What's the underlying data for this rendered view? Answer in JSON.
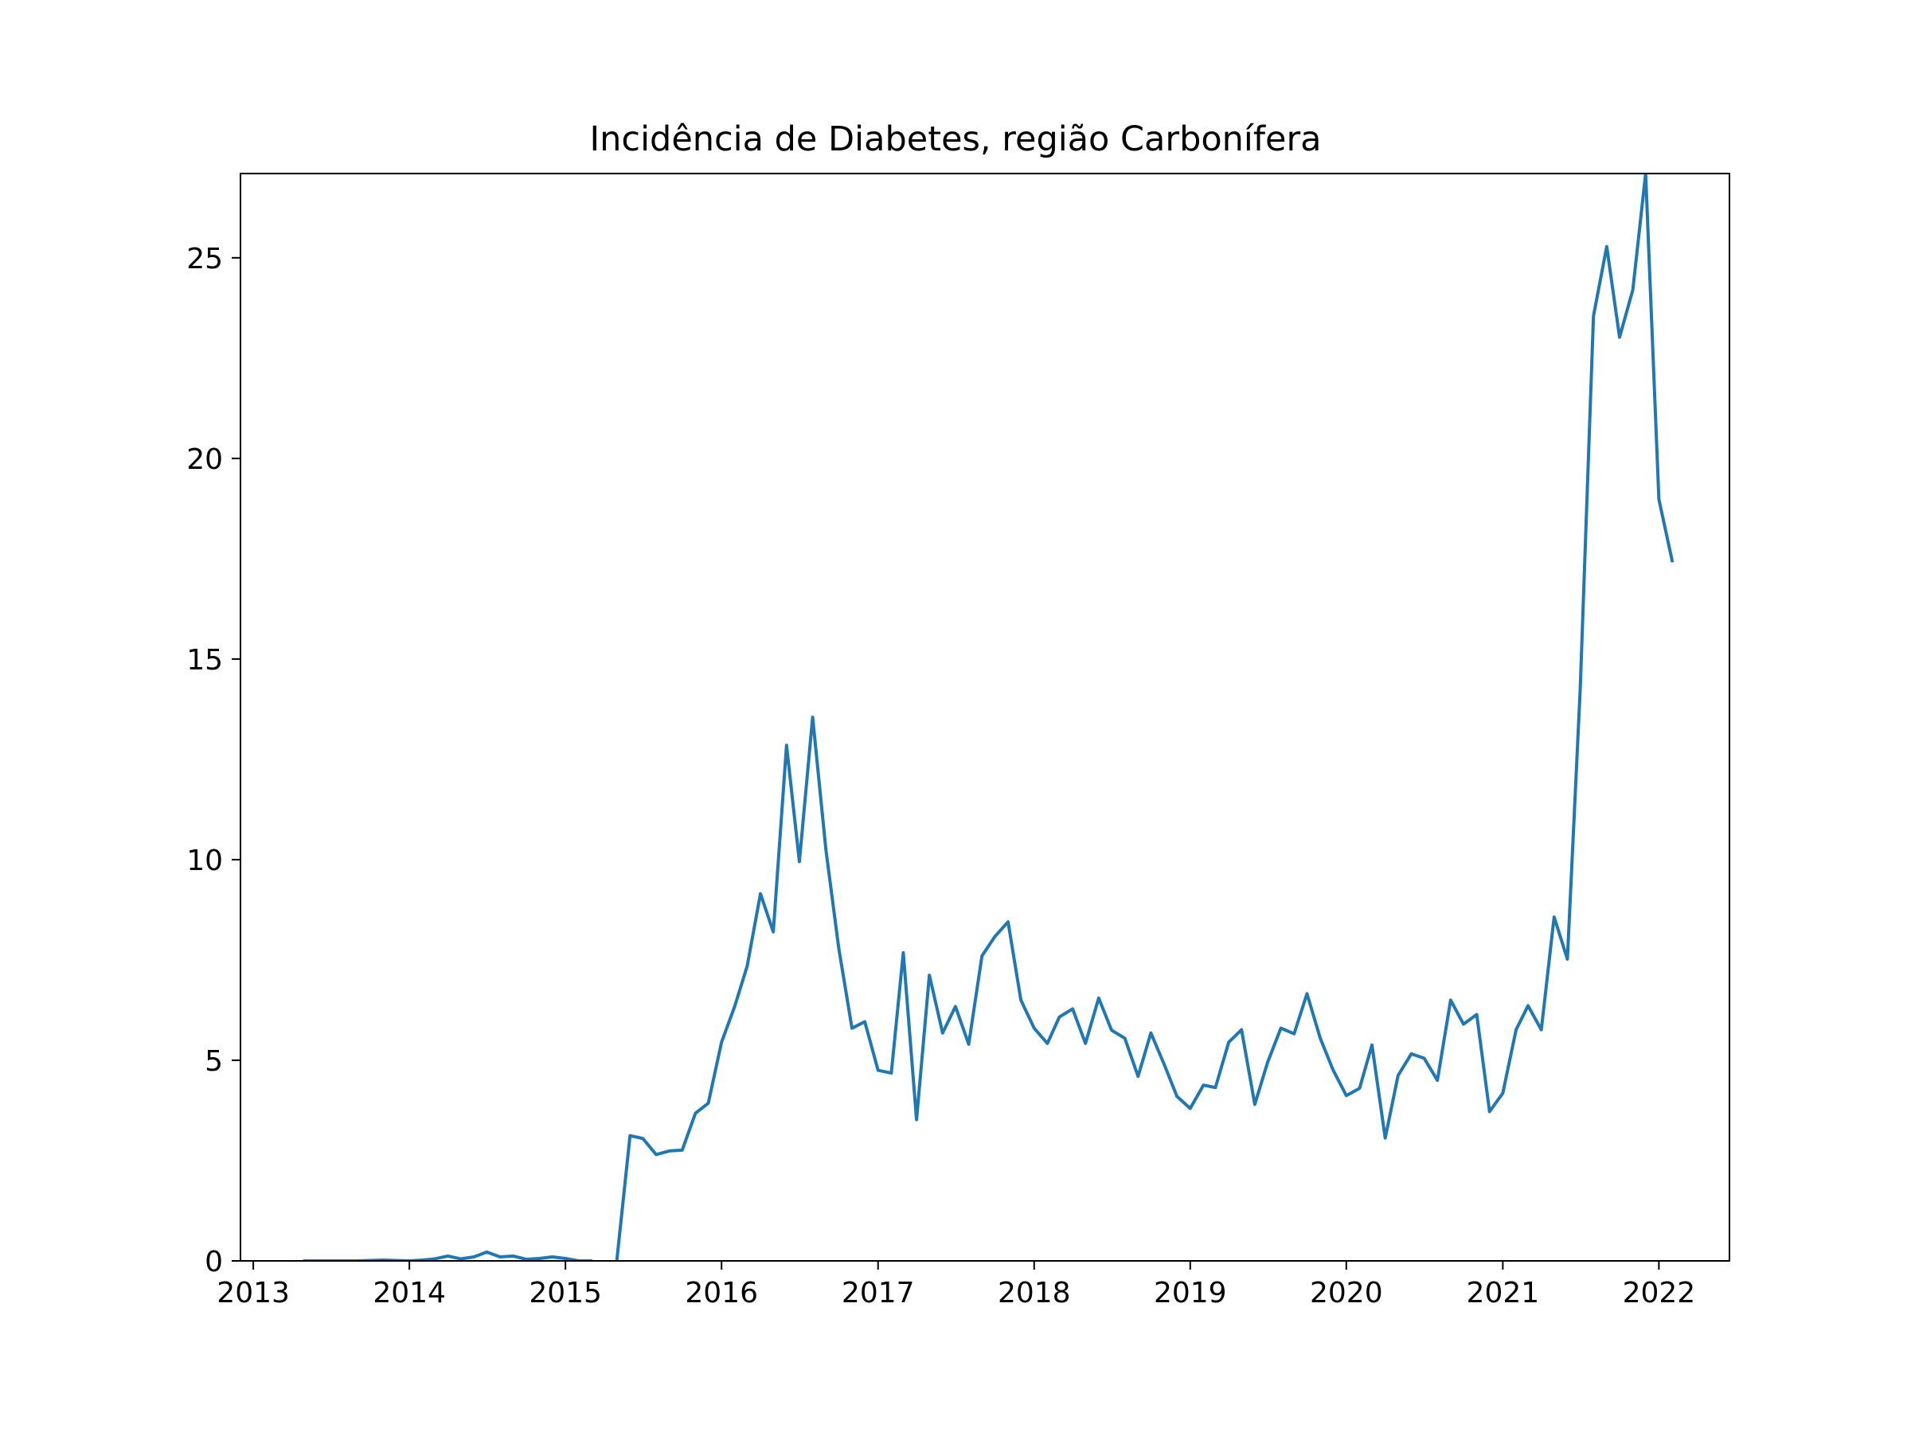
{
  "chart_data": {
    "type": "line",
    "title": "Incidência de Diabetes, região Carbonífera",
    "xlabel": "",
    "ylabel": "",
    "x_axis_type": "date",
    "xlim": [
      "2012-12-02",
      "2022-06-15"
    ],
    "ylim": [
      0,
      27.1
    ],
    "x_ticks": [
      "2013",
      "2014",
      "2015",
      "2016",
      "2017",
      "2018",
      "2019",
      "2020",
      "2021",
      "2022"
    ],
    "x_tick_dates": [
      "2013-01-01",
      "2014-01-01",
      "2015-01-01",
      "2016-01-01",
      "2017-01-01",
      "2018-01-01",
      "2019-01-01",
      "2020-01-01",
      "2021-01-01",
      "2022-01-01"
    ],
    "y_ticks": [
      0,
      5,
      10,
      15,
      20,
      25
    ],
    "grid": false,
    "legend": false,
    "colors": {
      "series": "#1f77b4",
      "axes": "#000000",
      "background": "#ffffff"
    },
    "series": [
      {
        "segments": [
          {
            "x": [
              "2013-05-01",
              "2013-06-01",
              "2013-07-01",
              "2013-08-01",
              "2013-09-01",
              "2013-10-01",
              "2013-11-01",
              "2013-12-01",
              "2014-01-01",
              "2014-02-01",
              "2014-03-01",
              "2014-04-01",
              "2014-05-01",
              "2014-06-01",
              "2014-07-01",
              "2014-08-01",
              "2014-09-01",
              "2014-10-01",
              "2014-11-01",
              "2014-12-01",
              "2015-01-01",
              "2015-02-01",
              "2015-03-01"
            ],
            "y": [
              0,
              0,
              0,
              0,
              0,
              0.01,
              0.02,
              0.01,
              0,
              0.02,
              0.05,
              0.12,
              0.05,
              0.1,
              0.22,
              0.1,
              0.12,
              0.04,
              0.06,
              0.1,
              0.06,
              0,
              0
            ]
          },
          {
            "x": [
              "2015-05-01",
              "2015-06-01",
              "2015-07-01",
              "2015-08-01",
              "2015-09-01",
              "2015-10-01",
              "2015-11-01",
              "2015-12-01",
              "2016-01-01",
              "2016-02-01",
              "2016-03-01",
              "2016-04-01",
              "2016-05-01",
              "2016-06-01",
              "2016-07-01",
              "2016-08-01",
              "2016-09-01",
              "2016-10-01",
              "2016-11-01",
              "2016-12-01",
              "2017-01-01",
              "2017-02-01",
              "2017-03-01",
              "2017-04-01",
              "2017-05-01",
              "2017-06-01",
              "2017-07-01",
              "2017-08-01",
              "2017-09-01",
              "2017-10-01",
              "2017-11-01",
              "2017-12-01",
              "2018-01-01",
              "2018-02-01",
              "2018-03-01",
              "2018-04-01",
              "2018-05-01",
              "2018-06-01",
              "2018-07-01",
              "2018-08-01",
              "2018-09-01",
              "2018-10-01",
              "2018-11-01",
              "2018-12-01",
              "2019-01-01",
              "2019-02-01",
              "2019-03-01",
              "2019-04-01",
              "2019-05-01",
              "2019-06-01",
              "2019-07-01",
              "2019-08-01",
              "2019-09-01",
              "2019-10-01",
              "2019-11-01",
              "2019-12-01",
              "2020-01-01",
              "2020-02-01",
              "2020-03-01",
              "2020-04-01",
              "2020-05-01",
              "2020-06-01",
              "2020-07-01",
              "2020-08-01",
              "2020-09-01",
              "2020-10-01",
              "2020-11-01",
              "2020-12-01",
              "2021-01-01",
              "2021-02-01",
              "2021-03-01",
              "2021-04-01",
              "2021-05-01",
              "2021-06-01",
              "2021-07-01",
              "2021-08-01",
              "2021-09-01",
              "2021-10-01",
              "2021-11-01",
              "2021-12-01",
              "2022-01-01",
              "2022-02-01"
            ],
            "y": [
              0,
              3.12,
              3.05,
              2.65,
              2.74,
              2.76,
              3.68,
              3.93,
              5.45,
              6.35,
              7.35,
              9.15,
              8.2,
              12.85,
              9.95,
              13.55,
              10.25,
              7.8,
              5.8,
              5.96,
              4.75,
              4.68,
              7.68,
              3.52,
              7.12,
              5.68,
              6.34,
              5.4,
              7.6,
              8.08,
              8.45,
              6.5,
              5.8,
              5.42,
              6.08,
              6.28,
              5.42,
              6.55,
              5.75,
              5.55,
              4.6,
              5.68,
              4.9,
              4.1,
              3.8,
              4.38,
              4.32,
              5.45,
              5.76,
              3.9,
              4.95,
              5.8,
              5.66,
              6.66,
              5.55,
              4.76,
              4.12,
              4.3,
              5.38,
              3.06,
              4.62,
              5.16,
              5.05,
              4.5,
              6.5,
              5.9,
              6.14,
              3.72,
              4.18,
              5.76,
              6.36,
              5.76,
              8.57,
              7.52,
              14.25,
              23.55,
              25.28,
              23.02,
              24.2,
              27.1,
              18.98,
              17.45
            ]
          }
        ]
      }
    ]
  }
}
